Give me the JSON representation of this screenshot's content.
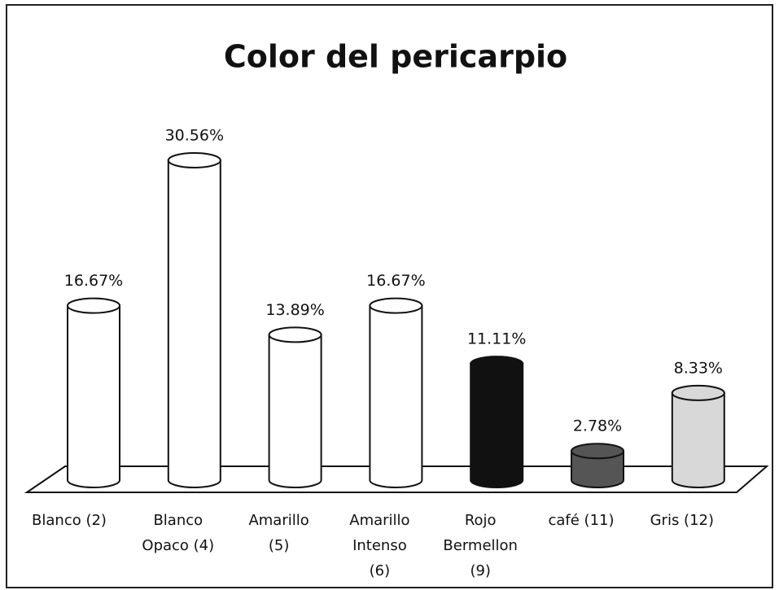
{
  "chart_data": {
    "type": "bar3d",
    "title": "Color del pericarpio",
    "categories": [
      [
        "Blanco (2)"
      ],
      [
        "Blanco",
        "Opaco (4)"
      ],
      [
        "Amarillo",
        "(5)"
      ],
      [
        "Amarillo",
        "Intenso",
        "(6)"
      ],
      [
        "Rojo",
        "Bermellon",
        "(9)"
      ],
      [
        "café (11)"
      ],
      [
        "Gris (12)"
      ]
    ],
    "values": [
      16.67,
      30.56,
      13.89,
      16.67,
      11.11,
      2.78,
      8.33
    ],
    "value_labels": [
      "16.67%",
      "30.56%",
      "13.89%",
      "16.67%",
      "11.11%",
      "2.78%",
      "8.33%"
    ],
    "colors": [
      "#ffffff",
      "#ffffff",
      "#ffffff",
      "#ffffff",
      "#111111",
      "#555555",
      "#d8d8d8"
    ]
  }
}
